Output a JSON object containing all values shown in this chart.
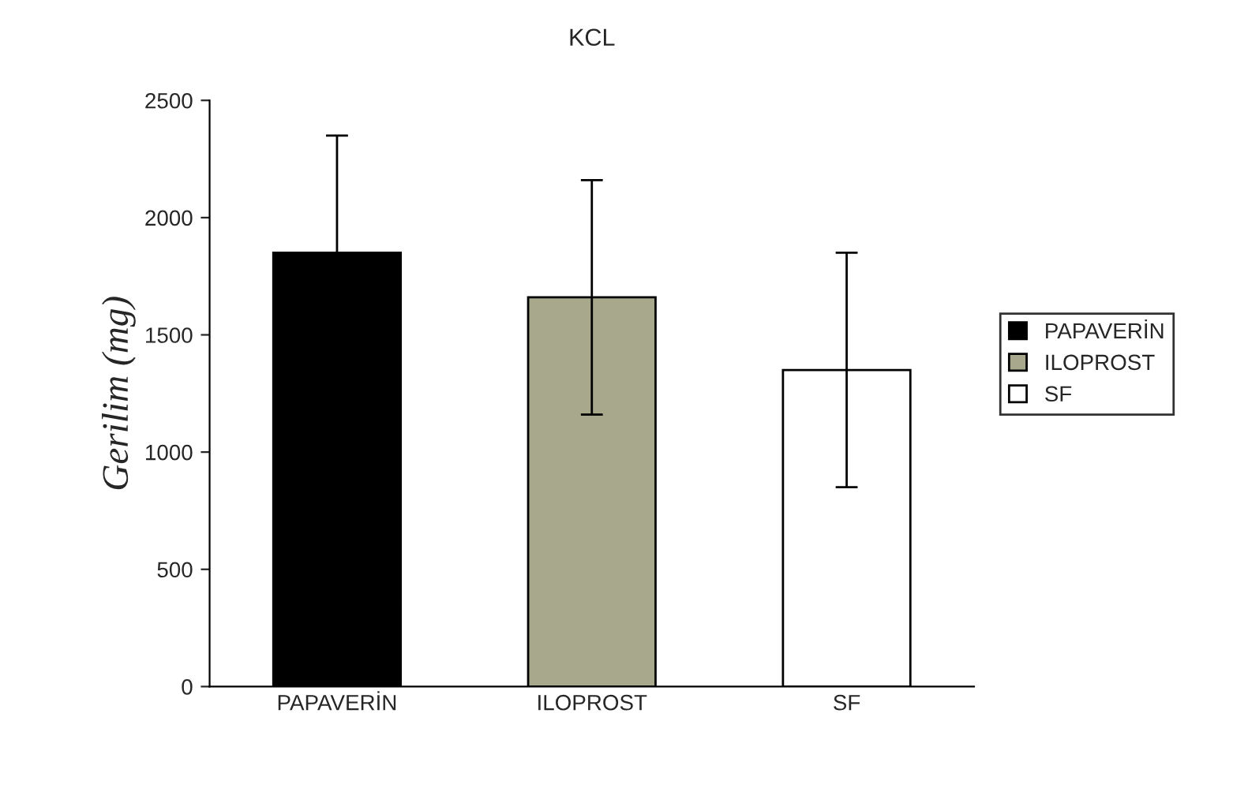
{
  "chart_data": {
    "type": "bar",
    "title": "KCL",
    "ylabel": "Gerilim (mg)",
    "categories": [
      "PAPAVERİN",
      "ILOPROST",
      "SF"
    ],
    "stacked": true,
    "series": [
      {
        "name": "PAPAVERİN",
        "color": "#000000",
        "values": [
          1850,
          null,
          null
        ],
        "errors": [
          500,
          null,
          null
        ]
      },
      {
        "name": "ILOPROST",
        "color": "#a8a88c",
        "values": [
          null,
          1660,
          null
        ],
        "errors": [
          null,
          500,
          null
        ]
      },
      {
        "name": "SF",
        "color": "#ffffff",
        "values": [
          null,
          null,
          1350
        ],
        "errors": [
          null,
          null,
          500
        ]
      }
    ],
    "ylim": [
      0,
      2500
    ],
    "yticks": [
      0,
      500,
      1000,
      1500,
      2000,
      2500
    ],
    "grid": false,
    "legend": "right"
  }
}
